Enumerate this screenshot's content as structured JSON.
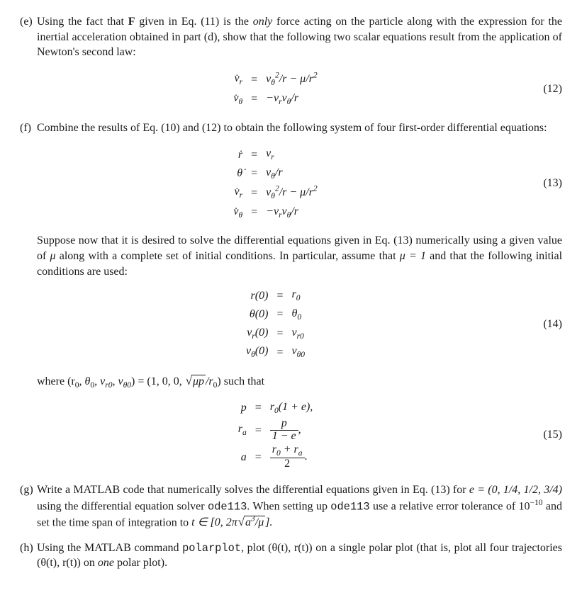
{
  "parts": {
    "e": {
      "label": "(e)",
      "text_pre": "Using the fact that ",
      "force": "F",
      "text_mid1": " given in Eq. (11) is the ",
      "only": "only",
      "text_mid2": " force acting on the particle along with the expression for the inertial acceleration obtained in part (d), show that the following two scalar equations result from the application of Newton's second law:"
    },
    "f": {
      "label": "(f)",
      "text": "Combine the results of Eq. (10) and (12) to obtain the following system of four first-order differential equations:"
    },
    "g": {
      "label": "(g)",
      "text_pre": "Write a ",
      "matlab": "MATLAB",
      "text_mid1": " code that numerically solves the differential equations given in Eq. (13) for ",
      "evals": "e = (0, 1/4, 1/2, 3/4)",
      "text_mid2": " using the differential equation solver ",
      "ode": "ode113",
      "text_mid3": ". When setting up ",
      "ode2": "ode113",
      "text_mid4": " use a relative error tolerance of 10",
      "tol_exp": "−10",
      "text_mid5": " and set the time span of integration to "
    },
    "h": {
      "label": "(h)",
      "text_pre": "Using the ",
      "matlab": "MATLAB",
      "text_mid1": " command ",
      "cmd": "polarplot",
      "text_mid2": ", plot (θ(t), r(t)) on a single polar plot (that is, plot all four trajectories (θ(t), r(t)) on ",
      "one": "one",
      "text_end": " polar plot)."
    }
  },
  "eq12": {
    "num": "(12)",
    "row1": {
      "lhs": "v̇",
      "lhs_sub": "r",
      "eq": "=",
      "rhs": "v",
      "rhs_cont1": "θ",
      "rhs_exp": "2",
      "rhs_cont2": "/r − μ/r",
      "rhs_exp2": "2"
    },
    "row2": {
      "lhs": "v̇",
      "lhs_sub": "θ",
      "eq": "=",
      "rhs": "−v",
      "rhs_sub1": "r",
      "rhs_cont": "v",
      "rhs_sub2": "θ",
      "rhs_end": "/r"
    }
  },
  "eq13": {
    "num": "(13)",
    "row1": {
      "lhs": "ṙ",
      "eq": "=",
      "rhs": "v",
      "rhs_sub": "r"
    },
    "row2": {
      "lhs": "θ̇",
      "eq": "=",
      "rhs": "v",
      "rhs_sub": "θ",
      "rhs_end": "/r"
    },
    "row3": {
      "lhs": "v̇",
      "lhs_sub": "r",
      "eq": "=",
      "rhs": "v",
      "rhs_sub1": "θ",
      "rhs_exp": "2",
      "rhs_cont": "/r − μ/r",
      "rhs_exp2": "2"
    },
    "row4": {
      "lhs": "v̇",
      "lhs_sub": "θ",
      "eq": "=",
      "rhs": "−v",
      "rhs_sub1": "r",
      "rhs_cont": "v",
      "rhs_sub2": "θ",
      "rhs_end": "/r"
    }
  },
  "eq14": {
    "num": "(14)",
    "row1": {
      "lhs": "r(0)",
      "eq": "=",
      "rhs": "r",
      "rhs_sub": "0"
    },
    "row2": {
      "lhs": "θ(0)",
      "eq": "=",
      "rhs": "θ",
      "rhs_sub": "0"
    },
    "row3": {
      "lhs": "v",
      "lhs_sub": "r",
      "lhs_cont": "(0)",
      "eq": "=",
      "rhs": "v",
      "rhs_sub": "r0"
    },
    "row4": {
      "lhs": "v",
      "lhs_sub": "θ",
      "lhs_cont": "(0)",
      "eq": "=",
      "rhs": "v",
      "rhs_sub": "θ0"
    }
  },
  "eq15": {
    "num": "(15)",
    "row1": {
      "lhs": "p",
      "eq": "=",
      "rhs": "r",
      "rhs_sub": "0",
      "rhs_cont": "(1 + e),"
    },
    "row2": {
      "lhs": "r",
      "lhs_sub": "a",
      "eq": "=",
      "frac_num": "p",
      "frac_den": "1 − e",
      "rhs_end": ","
    },
    "row3": {
      "lhs": "a",
      "eq": "=",
      "frac_num_a": "r",
      "frac_num_sub": "0",
      "frac_num_mid": " + r",
      "frac_num_sub2": "a",
      "frac_den": "2",
      "rhs_end": "."
    }
  },
  "intertext1": {
    "pre": "Suppose now that it is desired to solve the differential equations given in Eq. (13) numerically using a given value of ",
    "mu": "μ",
    "mid1": " along with a complete set of initial conditions. In particular, assume that ",
    "mu2": "μ = 1",
    "mid2": " and that the following initial conditions are used:"
  },
  "intertext2": {
    "pre": "where (r",
    "sub0": "0",
    "mid1": ", θ",
    "mid2": ", v",
    "subr0": "r0",
    "mid3": ", v",
    "subt0": "θ0",
    "mid4": ") = (1, 0, 0, ",
    "rad": "μp",
    "mid5": "/r",
    "mid6": ") such that"
  },
  "tspan": {
    "pre": "t ∈ [0, 2π",
    "rad": "a",
    "rad_exp": "3",
    "rad_cont": "/μ",
    "end": "]."
  }
}
